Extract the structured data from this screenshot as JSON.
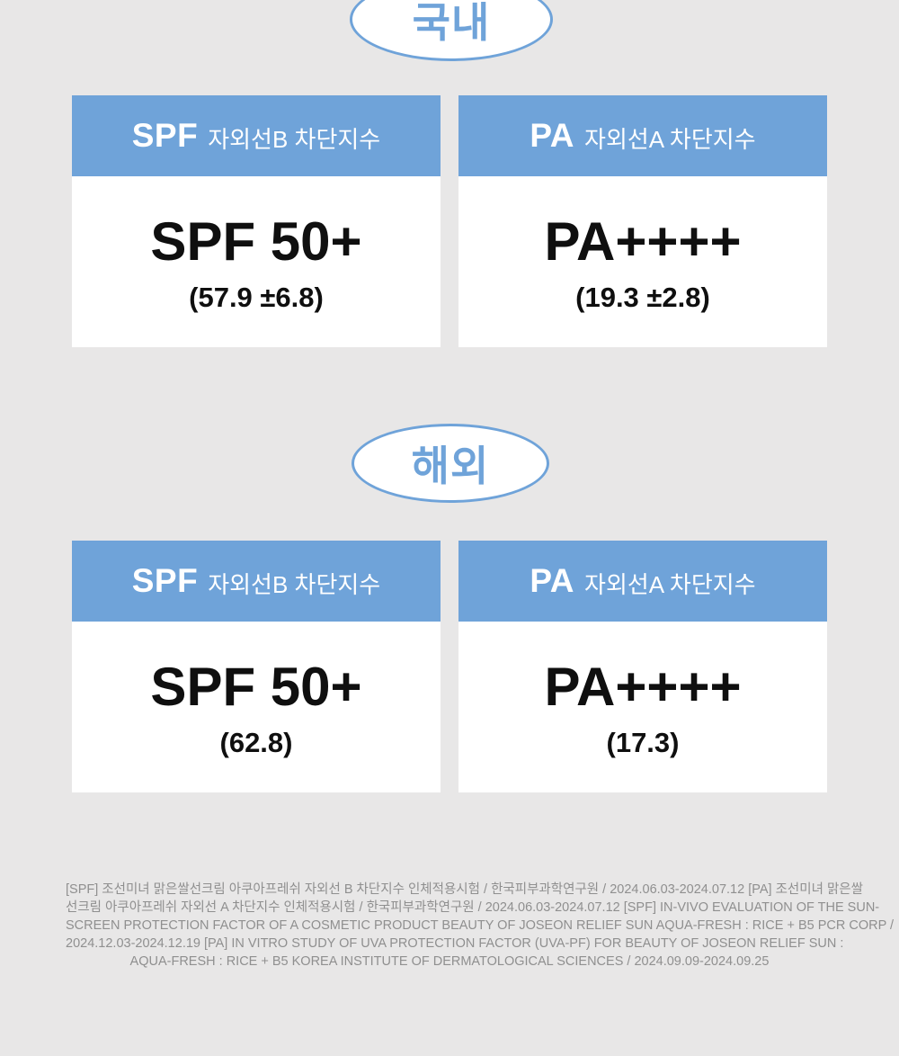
{
  "page": {
    "background_color": "#e8e7e7",
    "accent_blue": "#6fa3d9",
    "text_black": "#0f0f0f",
    "footer_gray": "#8f8f8f"
  },
  "sections": [
    {
      "badge": "국내",
      "cards": [
        {
          "header_abbr": "SPF",
          "header_label": "자외선B 차단지수",
          "value": "SPF 50+",
          "detail": "(57.9 ±6.8)"
        },
        {
          "header_abbr": "PA",
          "header_label": "자외선A 차단지수",
          "value": "PA++++",
          "detail": "(19.3 ±2.8)"
        }
      ]
    },
    {
      "badge": "해외",
      "cards": [
        {
          "header_abbr": "SPF",
          "header_label": "자외선B 차단지수",
          "value": "SPF 50+",
          "detail": "(62.8)"
        },
        {
          "header_abbr": "PA",
          "header_label": "자외선A 차단지수",
          "value": "PA++++",
          "detail": "(17.3)"
        }
      ]
    }
  ],
  "footer": {
    "lines": [
      "[SPF] 조선미녀 맑은쌀선크림 아쿠아프레쉬 자외선 B 차단지수 인체적용시험 / 한국피부과학연구원 / 2024.06.03-2024.07.12 [PA] 조선미녀 맑은쌀",
      "선크림 아쿠아프레쉬 자외선 A 차단지수 인체적용시험 / 한국피부과학연구원 / 2024.06.03-2024.07.12 [SPF] IN-VIVO EVALUATION OF THE SUN-",
      "SCREEN PROTECTION FACTOR OF A COSMETIC PRODUCT BEAUTY OF JOSEON RELIEF SUN AQUA-FRESH : RICE + B5 PCR CORP /",
      "2024.12.03-2024.12.19 [PA] IN VITRO STUDY OF UVA PROTECTION FACTOR (UVA-PF) FOR BEAUTY OF JOSEON RELIEF SUN :",
      "AQUA-FRESH : RICE + B5 KOREA INSTITUTE OF DERMATOLOGICAL SCIENCES / 2024.09.09-2024.09.25"
    ]
  }
}
